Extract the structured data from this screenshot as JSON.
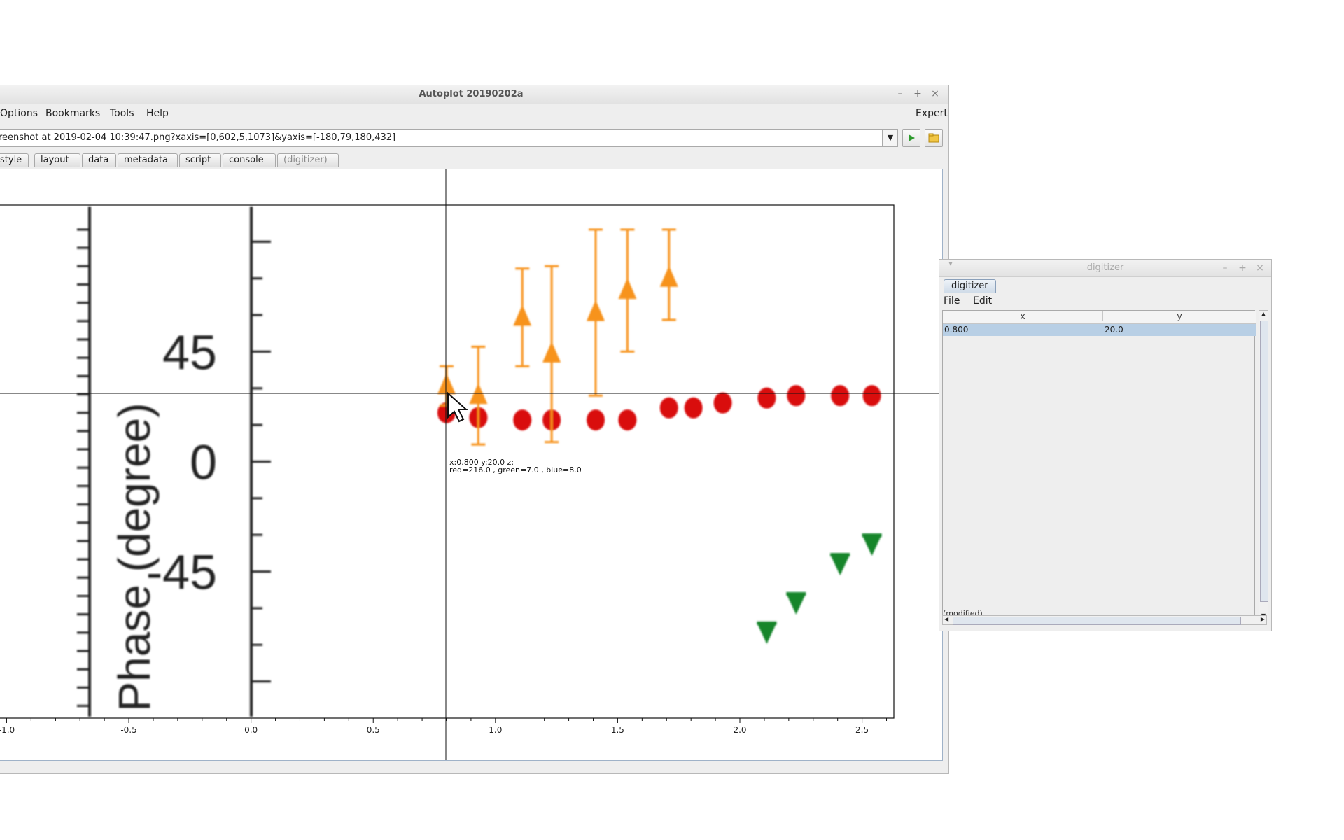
{
  "main_window": {
    "title": "Autoplot 20190202a",
    "menu": [
      "Options",
      "Bookmarks",
      "Tools",
      "Help"
    ],
    "expert_label": "Expert",
    "url_value": "reenshot at 2019-02-04 10:39:47.png?xaxis=[0,602,5,1073]&yaxis=[-180,79,180,432]",
    "tabs": [
      "style",
      "layout",
      "data",
      "metadata",
      "script",
      "console",
      "(digitizer)"
    ]
  },
  "plot": {
    "image_y_axis_label": "Phase (degree)",
    "image_y_ticks": [
      "45",
      "0",
      "-45"
    ],
    "x_ticks": [
      "-1.0",
      "-0.5",
      "0.0",
      "0.5",
      "1.0",
      "1.5",
      "2.0",
      "2.5"
    ],
    "crosshair_readout_line1": "x:0.800  y:20.0  z:",
    "crosshair_readout_line2": "red=216.0 , green=7.0 , blue=8.0",
    "colors": {
      "red_series": "#d9070a",
      "orange_series": "#f7931e",
      "green_series": "#13852a",
      "axis": "#111111"
    }
  },
  "chart_data": {
    "type": "scatter",
    "xlabel": "",
    "ylabel": "Phase (degree)",
    "xlim": [
      -1.05,
      2.63
    ],
    "ylim": [
      -105,
      105
    ],
    "y_ticks": [
      45,
      0,
      -45
    ],
    "x_ticks": [
      -1.0,
      -0.5,
      0.0,
      0.5,
      1.0,
      1.5,
      2.0,
      2.5
    ],
    "series": [
      {
        "marker": "circle",
        "color": "#d9070a",
        "x": [
          0.8,
          0.93,
          1.11,
          1.23,
          1.41,
          1.54,
          1.71,
          1.81,
          1.93,
          2.11,
          2.23,
          2.41,
          2.54
        ],
        "y": [
          20,
          18,
          17,
          17,
          17,
          17,
          22,
          22,
          24,
          26,
          27,
          27,
          27
        ]
      },
      {
        "marker": "triangle-up",
        "color": "#f7931e",
        "x": [
          0.8,
          0.93,
          1.11,
          1.23,
          1.41,
          1.54,
          1.71
        ],
        "y": [
          31,
          27,
          59,
          44,
          61,
          70,
          75
        ],
        "err_lo": [
          23,
          7,
          39,
          8,
          27,
          45,
          58
        ],
        "err_hi": [
          39,
          47,
          79,
          80,
          95,
          95,
          95
        ]
      },
      {
        "marker": "triangle-down",
        "color": "#13852a",
        "x": [
          2.11,
          2.23,
          2.41,
          2.54
        ],
        "y": [
          -70,
          -58,
          -42,
          -34
        ]
      }
    ]
  },
  "digitizer": {
    "title": "digitizer",
    "tab": "digitizer",
    "menu": [
      "File",
      "Edit"
    ],
    "columns": [
      "x",
      "y"
    ],
    "rows": [
      [
        "0.800",
        "20.0"
      ]
    ],
    "footer_text": "(modified)"
  }
}
